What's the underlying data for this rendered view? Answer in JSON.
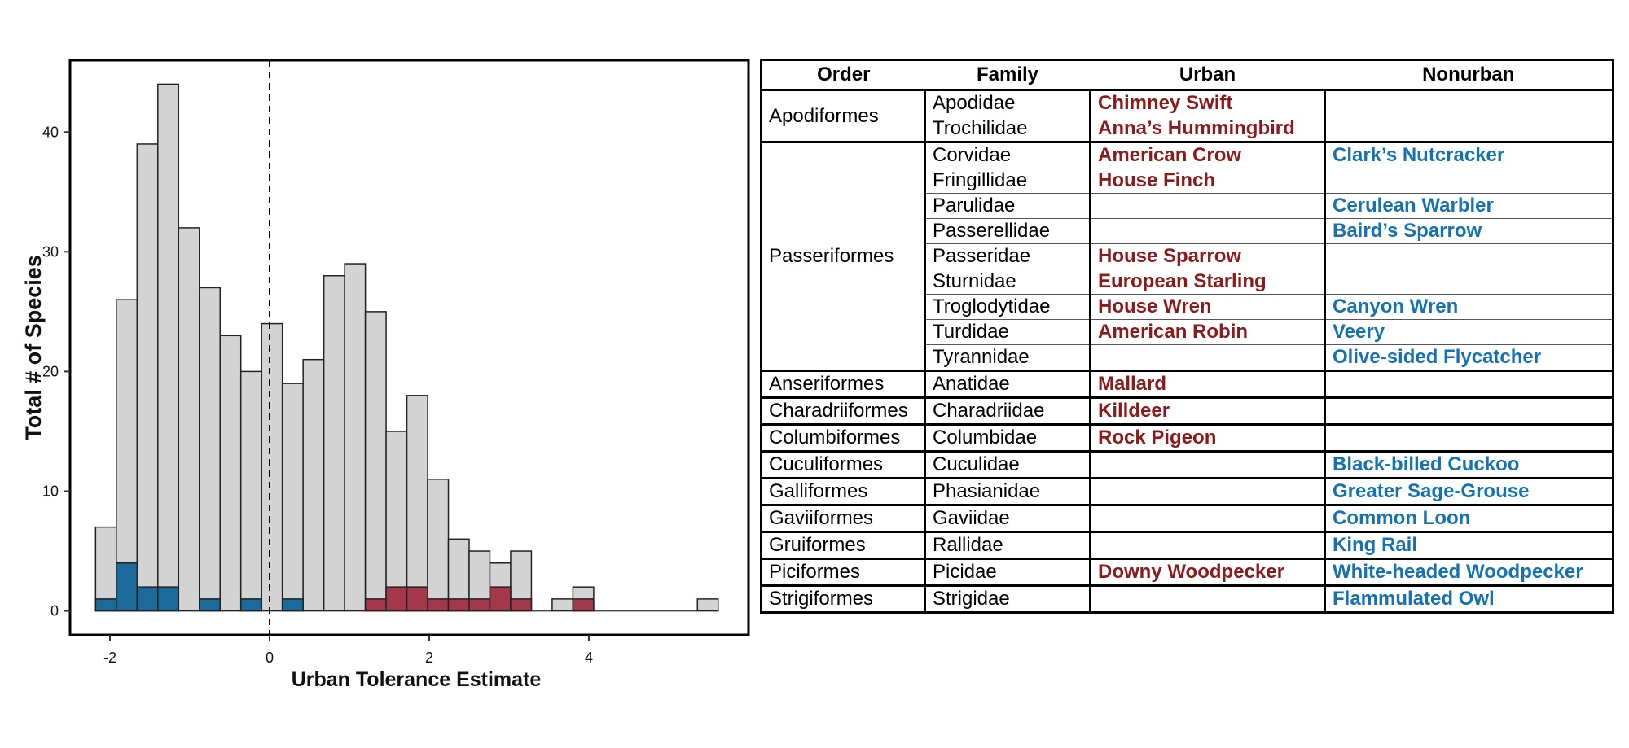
{
  "chart_data": {
    "type": "bar",
    "subtype": "stacked-histogram",
    "xlabel": "Urban Tolerance Estimate",
    "ylabel": "Total # of Species",
    "xlim": [
      -2.5,
      6.0
    ],
    "ylim": [
      -2,
      46
    ],
    "xticks": [
      -2,
      0,
      2,
      4
    ],
    "xtick_labels": [
      "-2",
      "0",
      "2",
      "4"
    ],
    "yticks": [
      0,
      10,
      20,
      30,
      40
    ],
    "ytick_labels": [
      "0",
      "10",
      "20",
      "30",
      "40"
    ],
    "reference_line": {
      "x": 0,
      "style": "dashed"
    },
    "bin_width": 0.26,
    "bin_centers": [
      -2.05,
      -1.79,
      -1.53,
      -1.27,
      -1.01,
      -0.75,
      -0.49,
      -0.23,
      0.03,
      0.29,
      0.55,
      0.81,
      1.07,
      1.33,
      1.59,
      1.85,
      2.11,
      2.37,
      2.63,
      2.89,
      3.15,
      3.41,
      3.67,
      3.93,
      4.19,
      4.45,
      4.71,
      4.97,
      5.23,
      5.49
    ],
    "series": [
      {
        "name": "total",
        "color": "#D3D3D3",
        "values": [
          7,
          26,
          39,
          44,
          32,
          27,
          23,
          20,
          24,
          19,
          21,
          28,
          29,
          25,
          15,
          18,
          11,
          6,
          5,
          4,
          5,
          0,
          1,
          2,
          0,
          0,
          0,
          0,
          0,
          1
        ]
      },
      {
        "name": "nonurban",
        "color": "#1B6A9A",
        "values": [
          1,
          4,
          2,
          2,
          0,
          1,
          0,
          1,
          0,
          1,
          0,
          0,
          0,
          0,
          0,
          0,
          0,
          0,
          0,
          0,
          0,
          0,
          0,
          0,
          0,
          0,
          0,
          0,
          0,
          0
        ]
      },
      {
        "name": "urban",
        "color": "#A3384A",
        "values": [
          0,
          0,
          0,
          0,
          0,
          0,
          0,
          0,
          0,
          0,
          0,
          0,
          0,
          1,
          2,
          2,
          1,
          1,
          1,
          2,
          1,
          0,
          0,
          1,
          0,
          0,
          0,
          0,
          0,
          0
        ]
      }
    ]
  },
  "table": {
    "headers": [
      "Order",
      "Family",
      "Urban",
      "Nonurban"
    ],
    "colors": {
      "urban": "#8B1A1A",
      "nonurban": "#1572B0"
    },
    "groups": [
      {
        "order": "Apodiformes",
        "rows": [
          {
            "family": "Apodidae",
            "urban": "Chimney Swift",
            "nonurban": ""
          },
          {
            "family": "Trochilidae",
            "urban": "Anna’s Hummingbird",
            "nonurban": ""
          }
        ]
      },
      {
        "order": "Passeriformes",
        "rows": [
          {
            "family": "Corvidae",
            "urban": "American Crow",
            "nonurban": "Clark’s Nutcracker"
          },
          {
            "family": "Fringillidae",
            "urban": "House Finch",
            "nonurban": ""
          },
          {
            "family": "Parulidae",
            "urban": "",
            "nonurban": "Cerulean Warbler"
          },
          {
            "family": "Passerellidae",
            "urban": "",
            "nonurban": "Baird’s Sparrow"
          },
          {
            "family": "Passeridae",
            "urban": "House Sparrow",
            "nonurban": ""
          },
          {
            "family": "Sturnidae",
            "urban": "European Starling",
            "nonurban": ""
          },
          {
            "family": "Troglodytidae",
            "urban": "House Wren",
            "nonurban": "Canyon Wren"
          },
          {
            "family": "Turdidae",
            "urban": "American Robin",
            "nonurban": "Veery"
          },
          {
            "family": "Tyrannidae",
            "urban": "",
            "nonurban": "Olive-sided Flycatcher"
          }
        ]
      },
      {
        "order": "Anseriformes",
        "rows": [
          {
            "family": "Anatidae",
            "urban": "Mallard",
            "nonurban": ""
          }
        ]
      },
      {
        "order": "Charadriiformes",
        "rows": [
          {
            "family": "Charadriidae",
            "urban": "Killdeer",
            "nonurban": ""
          }
        ]
      },
      {
        "order": "Columbiformes",
        "rows": [
          {
            "family": "Columbidae",
            "urban": "Rock Pigeon",
            "nonurban": ""
          }
        ]
      },
      {
        "order": "Cuculiformes",
        "rows": [
          {
            "family": "Cuculidae",
            "urban": "",
            "nonurban": "Black-billed Cuckoo"
          }
        ]
      },
      {
        "order": "Galliformes",
        "rows": [
          {
            "family": "Phasianidae",
            "urban": "",
            "nonurban": "Greater Sage-Grouse"
          }
        ]
      },
      {
        "order": "Gaviiformes",
        "rows": [
          {
            "family": "Gaviidae",
            "urban": "",
            "nonurban": "Common Loon"
          }
        ]
      },
      {
        "order": "Gruiformes",
        "rows": [
          {
            "family": "Rallidae",
            "urban": "",
            "nonurban": "King Rail"
          }
        ]
      },
      {
        "order": "Piciformes",
        "rows": [
          {
            "family": "Picidae",
            "urban": "Downy Woodpecker",
            "nonurban": "White-headed Woodpecker"
          }
        ]
      },
      {
        "order": "Strigiformes",
        "rows": [
          {
            "family": "Strigidae",
            "urban": "",
            "nonurban": "Flammulated Owl"
          }
        ]
      }
    ]
  }
}
